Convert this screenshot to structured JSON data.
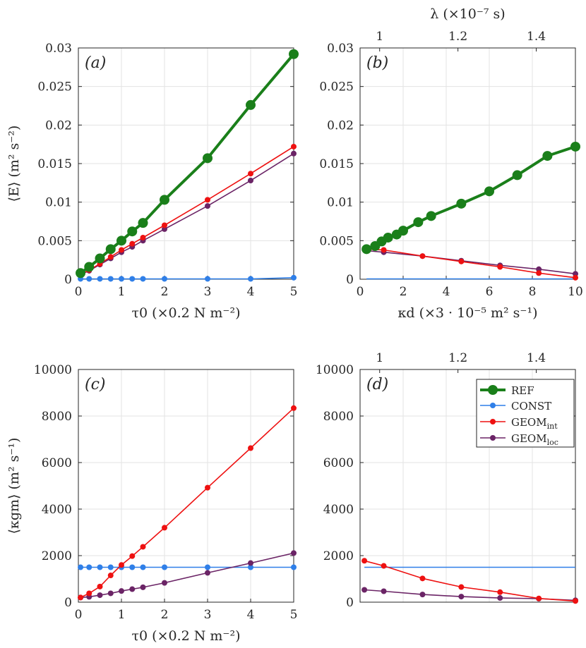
{
  "chart_data": [
    {
      "panel": "a",
      "type": "line",
      "tag": "(a)",
      "xlabel": "τ0 (×0.2 N m⁻²)",
      "ylabel": "⟨E⟩ (m² s⁻²)",
      "xlim": [
        0,
        5
      ],
      "ylim": [
        0,
        0.03
      ],
      "xticks": [
        0,
        1,
        2,
        3,
        4,
        5
      ],
      "xticklabels": [
        "0",
        "1",
        "2",
        "3",
        "4",
        "5"
      ],
      "yticks": [
        0,
        0.005,
        0.01,
        0.015,
        0.02,
        0.025,
        0.03
      ],
      "yticklabels": [
        "0",
        "0.005",
        "0.01",
        "0.015",
        "0.02",
        "0.025",
        "0.03"
      ],
      "grid": true,
      "series": [
        {
          "name": "REF",
          "x": [
            0.05,
            0.25,
            0.5,
            0.75,
            1,
            1.25,
            1.5,
            2,
            3,
            4,
            5
          ],
          "y": [
            0.0008,
            0.0016,
            0.0027,
            0.0039,
            0.005,
            0.0062,
            0.0073,
            0.0103,
            0.0157,
            0.0226,
            0.0292
          ]
        },
        {
          "name": "CONST",
          "x": [
            0.05,
            0.25,
            0.5,
            0.75,
            1,
            1.25,
            1.5,
            2,
            3,
            4,
            5
          ],
          "y": [
            5e-05,
            5e-05,
            5e-05,
            5e-05,
            5e-05,
            5e-05,
            5e-05,
            5e-05,
            5e-05,
            5e-05,
            0.0002
          ]
        },
        {
          "name": "GEOMint",
          "x": [
            0.05,
            0.25,
            0.5,
            0.75,
            1,
            1.25,
            1.5,
            2,
            3,
            4,
            5
          ],
          "y": [
            0.0006,
            0.0012,
            0.002,
            0.0029,
            0.0038,
            0.0046,
            0.0054,
            0.007,
            0.0103,
            0.0137,
            0.0172
          ]
        },
        {
          "name": "GEOMloc",
          "x": [
            0.05,
            0.25,
            0.5,
            0.75,
            1,
            1.25,
            1.5,
            2,
            3,
            4,
            5
          ],
          "y": [
            0.0006,
            0.0011,
            0.0019,
            0.0027,
            0.0035,
            0.0042,
            0.005,
            0.0065,
            0.0095,
            0.0128,
            0.0163
          ]
        }
      ]
    },
    {
      "panel": "b",
      "type": "line",
      "tag": "(b)",
      "xlabel": "κd (×3 · 10⁻⁵ m² s⁻¹)",
      "top_xlabel": "λ (×10⁻⁷ s)",
      "xlim": [
        0,
        10
      ],
      "ylim": [
        0,
        0.03
      ],
      "xticks": [
        0,
        2,
        4,
        6,
        8,
        10
      ],
      "xticklabels": [
        "0",
        "2",
        "4",
        "6",
        "8",
        "10"
      ],
      "top_xticks": [
        1,
        1.2,
        1.4
      ],
      "top_xticklabels": [
        "1",
        "1.2",
        "1.4"
      ],
      "top_xlim": [
        0.95,
        1.5
      ],
      "yticks": [
        0,
        0.005,
        0.01,
        0.015,
        0.02,
        0.025,
        0.03
      ],
      "yticklabels": [
        "0",
        "0.005",
        "0.01",
        "0.015",
        "0.02",
        "0.025",
        "0.03"
      ],
      "grid": true,
      "series": [
        {
          "name": "REF",
          "x": [
            0.3,
            0.7,
            1.0,
            1.3,
            1.7,
            2.0,
            2.7,
            3.3,
            4.7,
            6.0,
            7.3,
            8.7,
            10.0
          ],
          "y": [
            0.0039,
            0.0043,
            0.0049,
            0.0054,
            0.0058,
            0.0063,
            0.0074,
            0.0082,
            0.0098,
            0.0114,
            0.0135,
            0.016,
            0.0172
          ]
        },
        {
          "name": "CONST",
          "x": [
            0.3,
            1.0,
            2.9,
            4.7,
            6.5,
            8.3,
            10.0
          ],
          "y": [
            5e-05,
            5e-05,
            5e-05,
            5e-05,
            5e-05,
            5e-05,
            5e-05
          ]
        },
        {
          "name": "GEOMint",
          "x": [
            0.3,
            1.1,
            2.9,
            4.7,
            6.5,
            8.3,
            10.0
          ],
          "y": [
            0.0039,
            0.0038,
            0.003,
            0.0023,
            0.0016,
            0.0008,
            0.0002
          ]
        },
        {
          "name": "GEOMloc",
          "x": [
            0.3,
            1.1,
            2.9,
            4.7,
            6.5,
            8.3,
            10.0
          ],
          "y": [
            0.0037,
            0.0035,
            0.003,
            0.0024,
            0.0018,
            0.0013,
            0.0007
          ]
        }
      ]
    },
    {
      "panel": "c",
      "type": "line",
      "tag": "(c)",
      "xlabel": "τ0 (×0.2 N m⁻²)",
      "ylabel": "⟨κgm⟩ (m² s⁻¹)",
      "xlim": [
        0,
        5
      ],
      "ylim": [
        0,
        10000
      ],
      "xticks": [
        0,
        1,
        2,
        3,
        4,
        5
      ],
      "xticklabels": [
        "0",
        "1",
        "2",
        "3",
        "4",
        "5"
      ],
      "yticks": [
        0,
        2000,
        4000,
        6000,
        8000,
        10000
      ],
      "yticklabels": [
        "0",
        "2000",
        "4000",
        "6000",
        "8000",
        "10000"
      ],
      "grid": true,
      "series": [
        {
          "name": "CONST",
          "x": [
            0.05,
            0.25,
            0.5,
            0.75,
            1,
            1.25,
            1.5,
            2,
            3,
            4,
            5
          ],
          "y": [
            1500,
            1500,
            1500,
            1500,
            1500,
            1500,
            1500,
            1500,
            1500,
            1500,
            1500
          ]
        },
        {
          "name": "GEOMint",
          "x": [
            0.05,
            0.25,
            0.5,
            0.75,
            1,
            1.25,
            1.5,
            2,
            3,
            4,
            5
          ],
          "y": [
            200,
            380,
            670,
            1150,
            1600,
            1980,
            2380,
            3200,
            4920,
            6620,
            8340
          ]
        },
        {
          "name": "GEOMloc",
          "x": [
            0.05,
            0.25,
            0.5,
            0.75,
            1,
            1.25,
            1.5,
            2,
            3,
            4,
            5
          ],
          "y": [
            200,
            230,
            300,
            380,
            480,
            560,
            640,
            830,
            1260,
            1680,
            2110
          ]
        }
      ]
    },
    {
      "panel": "d",
      "type": "line",
      "tag": "(d)",
      "xlim": [
        0,
        10
      ],
      "ylim": [
        0,
        10000
      ],
      "top_xticks": [
        1,
        1.2,
        1.4
      ],
      "top_xticklabels": [
        "1",
        "1.2",
        "1.4"
      ],
      "top_xlim": [
        0.95,
        1.5
      ],
      "yticks": [
        0,
        2000,
        4000,
        6000,
        8000,
        10000
      ],
      "yticklabels": [
        "0",
        "2000",
        "4000",
        "6000",
        "8000",
        "10000"
      ],
      "grid": true,
      "series": [
        {
          "name": "CONST",
          "x": [
            0.2,
            10.0
          ],
          "y": [
            1500,
            1500
          ]
        },
        {
          "name": "GEOMint",
          "x": [
            0.2,
            1.1,
            2.9,
            4.7,
            6.5,
            8.3,
            10.0
          ],
          "y": [
            1780,
            1560,
            1020,
            650,
            430,
            160,
            50
          ]
        },
        {
          "name": "GEOMloc",
          "x": [
            0.2,
            1.1,
            2.9,
            4.7,
            6.5,
            8.3,
            10.0
          ],
          "y": [
            530,
            470,
            330,
            240,
            180,
            150,
            80
          ]
        }
      ]
    }
  ],
  "legend": {
    "placement": "top-right of panel d",
    "entries": [
      {
        "label": "REF",
        "color": "#1a7f1a"
      },
      {
        "label": "CONST",
        "color": "#2f7fe8"
      },
      {
        "label": "GEOM",
        "sub": "int",
        "color": "#ee1111"
      },
      {
        "label": "GEOM",
        "sub": "loc",
        "color": "#6b2466"
      }
    ]
  },
  "colors": {
    "REF": "#1a7f1a",
    "CONST": "#2f7fe8",
    "GEOMint": "#ee1111",
    "GEOMloc": "#6b2466"
  }
}
